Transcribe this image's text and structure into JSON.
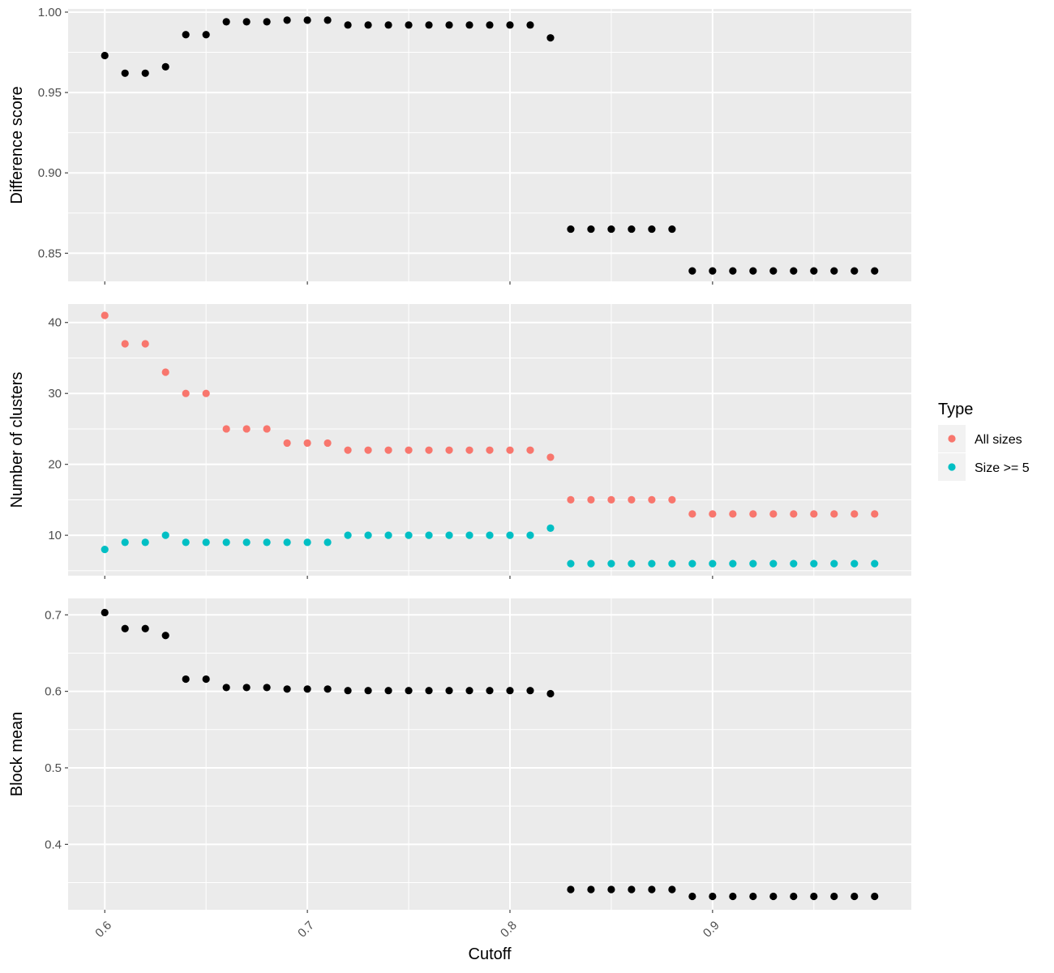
{
  "chart_data": [
    {
      "type": "scatter",
      "ylabel": "Difference score",
      "ylim": [
        0.8325,
        1.002
      ],
      "yticks": [
        0.85,
        0.9,
        0.95,
        1.0
      ],
      "ytick_labels": [
        "0.85",
        "0.90",
        "0.95",
        "1.00"
      ],
      "series": [
        {
          "color": "#000000",
          "x": [
            0.6,
            0.61,
            0.62,
            0.63,
            0.64,
            0.65,
            0.66,
            0.67,
            0.68,
            0.69,
            0.7,
            0.71,
            0.72,
            0.73,
            0.74,
            0.75,
            0.76,
            0.77,
            0.78,
            0.79,
            0.8,
            0.81,
            0.82,
            0.83,
            0.84,
            0.85,
            0.86,
            0.87,
            0.88,
            0.89,
            0.9,
            0.91,
            0.92,
            0.93,
            0.94,
            0.95,
            0.96,
            0.97,
            0.98
          ],
          "y": [
            0.973,
            0.962,
            0.962,
            0.966,
            0.986,
            0.986,
            0.994,
            0.994,
            0.994,
            0.995,
            0.995,
            0.995,
            0.992,
            0.992,
            0.992,
            0.992,
            0.992,
            0.992,
            0.992,
            0.992,
            0.992,
            0.992,
            0.984,
            0.865,
            0.865,
            0.865,
            0.865,
            0.865,
            0.865,
            0.839,
            0.839,
            0.839,
            0.839,
            0.839,
            0.839,
            0.839,
            0.839,
            0.839,
            0.839
          ]
        }
      ]
    },
    {
      "type": "scatter",
      "ylabel": "Number of clusters",
      "ylim": [
        4.3,
        42.6
      ],
      "yticks": [
        10,
        20,
        30,
        40
      ],
      "ytick_labels": [
        "10",
        "20",
        "30",
        "40"
      ],
      "legend": {
        "title": "Type",
        "position": "right"
      },
      "series": [
        {
          "name": "All sizes",
          "color": "#F8766D",
          "x": [
            0.6,
            0.61,
            0.62,
            0.63,
            0.64,
            0.65,
            0.66,
            0.67,
            0.68,
            0.69,
            0.7,
            0.71,
            0.72,
            0.73,
            0.74,
            0.75,
            0.76,
            0.77,
            0.78,
            0.79,
            0.8,
            0.81,
            0.82,
            0.83,
            0.84,
            0.85,
            0.86,
            0.87,
            0.88,
            0.89,
            0.9,
            0.91,
            0.92,
            0.93,
            0.94,
            0.95,
            0.96,
            0.97,
            0.98
          ],
          "y": [
            41,
            37,
            37,
            33,
            30,
            30,
            25,
            25,
            25,
            23,
            23,
            23,
            22,
            22,
            22,
            22,
            22,
            22,
            22,
            22,
            22,
            22,
            21,
            15,
            15,
            15,
            15,
            15,
            15,
            13,
            13,
            13,
            13,
            13,
            13,
            13,
            13,
            13,
            13
          ]
        },
        {
          "name": "Size >= 5",
          "color": "#00BFC4",
          "x": [
            0.6,
            0.61,
            0.62,
            0.63,
            0.64,
            0.65,
            0.66,
            0.67,
            0.68,
            0.69,
            0.7,
            0.71,
            0.72,
            0.73,
            0.74,
            0.75,
            0.76,
            0.77,
            0.78,
            0.79,
            0.8,
            0.81,
            0.82,
            0.83,
            0.84,
            0.85,
            0.86,
            0.87,
            0.88,
            0.89,
            0.9,
            0.91,
            0.92,
            0.93,
            0.94,
            0.95,
            0.96,
            0.97,
            0.98
          ],
          "y": [
            8,
            9,
            9,
            10,
            9,
            9,
            9,
            9,
            9,
            9,
            9,
            9,
            10,
            10,
            10,
            10,
            10,
            10,
            10,
            10,
            10,
            10,
            11,
            6,
            6,
            6,
            6,
            6,
            6,
            6,
            6,
            6,
            6,
            6,
            6,
            6,
            6,
            6,
            6
          ]
        }
      ]
    },
    {
      "type": "scatter",
      "ylabel": "Block mean",
      "xlabel": "Cutoff",
      "ylim": [
        0.3145,
        0.7215
      ],
      "yticks": [
        0.4,
        0.5,
        0.6,
        0.7
      ],
      "ytick_labels": [
        "0.4",
        "0.5",
        "0.6",
        "0.7"
      ],
      "series": [
        {
          "color": "#000000",
          "x": [
            0.6,
            0.61,
            0.62,
            0.63,
            0.64,
            0.65,
            0.66,
            0.67,
            0.68,
            0.69,
            0.7,
            0.71,
            0.72,
            0.73,
            0.74,
            0.75,
            0.76,
            0.77,
            0.78,
            0.79,
            0.8,
            0.81,
            0.82,
            0.83,
            0.84,
            0.85,
            0.86,
            0.87,
            0.88,
            0.89,
            0.9,
            0.91,
            0.92,
            0.93,
            0.94,
            0.95,
            0.96,
            0.97,
            0.98
          ],
          "y": [
            0.703,
            0.682,
            0.682,
            0.673,
            0.616,
            0.616,
            0.605,
            0.605,
            0.605,
            0.603,
            0.603,
            0.603,
            0.601,
            0.601,
            0.601,
            0.601,
            0.601,
            0.601,
            0.601,
            0.601,
            0.601,
            0.601,
            0.597,
            0.341,
            0.341,
            0.341,
            0.341,
            0.341,
            0.341,
            0.332,
            0.332,
            0.332,
            0.332,
            0.332,
            0.332,
            0.332,
            0.332,
            0.332,
            0.332
          ]
        }
      ]
    }
  ],
  "x_axis": {
    "xlim": [
      0.5819,
      0.9981
    ],
    "xticks": [
      0.6,
      0.7,
      0.8,
      0.9
    ],
    "xtick_labels": [
      "0.6",
      "0.7",
      "0.8",
      "0.9"
    ],
    "xlabel": "Cutoff"
  },
  "grid": true
}
